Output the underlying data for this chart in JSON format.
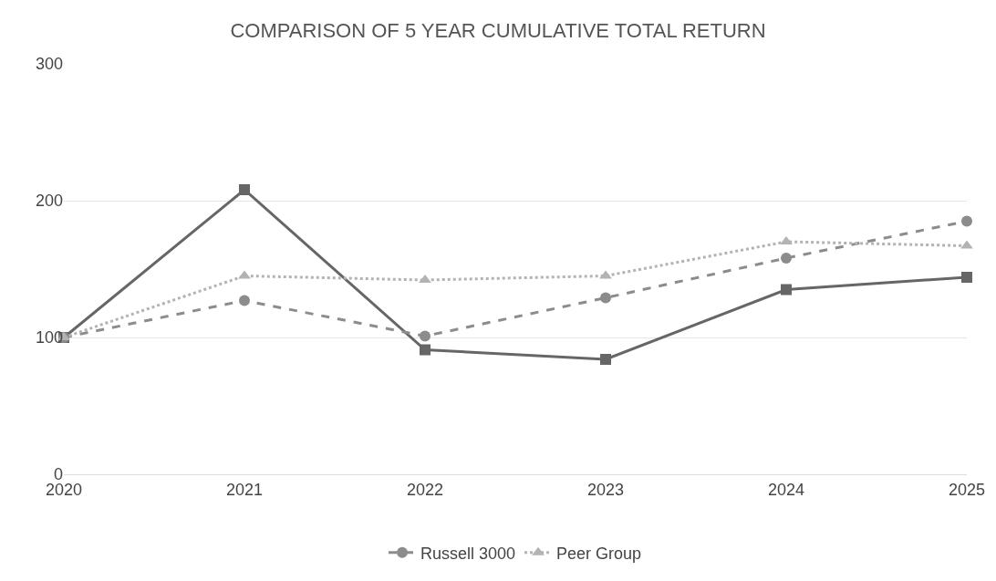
{
  "chart_data": {
    "type": "line",
    "title": "COMPARISON OF 5 YEAR CUMULATIVE TOTAL RETURN",
    "x": [
      2020,
      2021,
      2022,
      2023,
      2024,
      2025
    ],
    "xlim": [
      2020,
      2025
    ],
    "xticks": [
      2020,
      2021,
      2022,
      2023,
      2024,
      2025
    ],
    "ylim": [
      0,
      300
    ],
    "yticks": [
      0,
      100,
      200,
      300
    ],
    "grid": "y",
    "legend": "bottom",
    "series": [
      {
        "color": "#666666",
        "marker": "square",
        "line_style": "solid",
        "values": [
          100,
          208,
          91,
          84,
          135,
          144
        ]
      },
      {
        "name": "Russell 3000",
        "color": "#8c8c8c",
        "marker": "circle",
        "line_style": "dashed",
        "values": [
          100,
          127,
          101,
          129,
          158,
          185
        ]
      },
      {
        "name": "Peer Group",
        "color": "#b3b3b3",
        "marker": "triangle",
        "line_style": "dotted",
        "values": [
          100,
          145,
          142,
          145,
          170,
          167
        ]
      }
    ]
  }
}
